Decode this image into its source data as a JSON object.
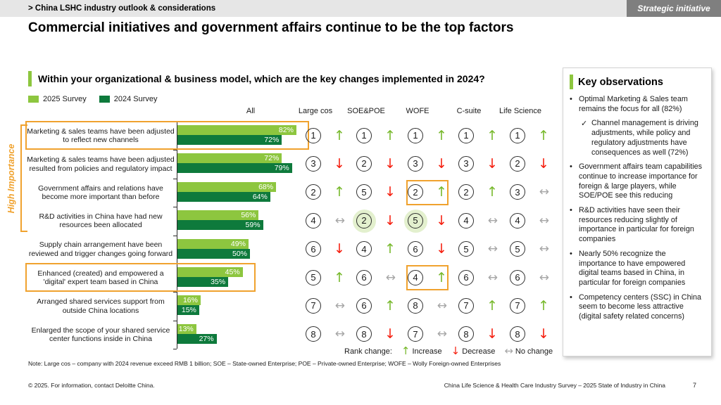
{
  "header": {
    "breadcrumb": "> China LSHC industry outlook & considerations",
    "badge": "Strategic initiative"
  },
  "title": "Commercial initiatives and government affairs continue to be the top factors",
  "question": "Within your organizational & business model, which are the key changes implemented in 2024?",
  "side_label": "High Importance",
  "columns": [
    "All",
    "Large cos",
    "SOE&POE",
    "WOFE",
    "C-suite",
    "Life Science"
  ],
  "colors": {
    "accent_green_light": "#8dc63f",
    "accent_green_dark": "#0e7a3c",
    "highlight_orange": "#f0a22e",
    "arrow_increase": "#76b82a",
    "arrow_decrease": "#f51f0f",
    "arrow_no_change": "#a6a6a6",
    "rank_highlight_fill": "#e3f0ce",
    "topbar_gray": "#e6e6e6",
    "badge_gray": "#7f7f7f"
  },
  "icons": {
    "up": "↑",
    "down": "↓",
    "none": "↔",
    "bullet": "•",
    "check": "✓"
  },
  "chart_data": {
    "type": "bar",
    "orientation": "horizontal",
    "title": "Within your organizational & business model, which are the key changes implemented in 2024?",
    "value_suffix": "%",
    "xlim": [
      0,
      100
    ],
    "grid": false,
    "legend_position": "top-left",
    "categories": [
      "Marketing & sales teams have been adjusted to reflect new channels",
      "Marketing & sales teams have been adjusted resulted from policies and regulatory impact",
      "Government affairs and relations have become more important than before",
      "R&D activities in China have had new resources been allocated",
      "Supply chain arrangement have been reviewed and trigger changes going forward",
      "Enhanced (created) and empowered a 'digital' expert team based in China",
      "Arranged shared services support from outside China locations",
      "Enlarged the scope of your shared service center functions inside in China"
    ],
    "series": [
      {
        "name": "2025 Survey",
        "color": "#8dc63f",
        "values": [
          82,
          72,
          68,
          56,
          49,
          45,
          16,
          13
        ]
      },
      {
        "name": "2024 Survey",
        "color": "#0e7a3c",
        "values": [
          72,
          79,
          64,
          59,
          50,
          35,
          15,
          27
        ]
      }
    ]
  },
  "rank_table": {
    "columns": [
      "Large cos",
      "SOE&POE",
      "WOFE",
      "C-suite",
      "Life Science"
    ],
    "rows": [
      {
        "label": "Marketing & sales teams have been adjusted to reflect new channels",
        "v2025": 82,
        "v2024": 72,
        "highlighted": true,
        "ranks": [
          {
            "n": 1,
            "dir": "up"
          },
          {
            "n": 1,
            "dir": "up"
          },
          {
            "n": 1,
            "dir": "up"
          },
          {
            "n": 1,
            "dir": "up"
          },
          {
            "n": 1,
            "dir": "up"
          }
        ]
      },
      {
        "label": "Marketing & sales teams have been adjusted resulted from policies and regulatory impact",
        "v2025": 72,
        "v2024": 79,
        "highlighted": false,
        "ranks": [
          {
            "n": 3,
            "dir": "down"
          },
          {
            "n": 2,
            "dir": "down"
          },
          {
            "n": 3,
            "dir": "down"
          },
          {
            "n": 3,
            "dir": "down"
          },
          {
            "n": 2,
            "dir": "down"
          }
        ]
      },
      {
        "label": "Government affairs and relations have become more important than before",
        "v2025": 68,
        "v2024": 64,
        "highlighted": false,
        "ranks": [
          {
            "n": 2,
            "dir": "up"
          },
          {
            "n": 5,
            "dir": "down"
          },
          {
            "n": 2,
            "dir": "up",
            "highlight": "box"
          },
          {
            "n": 2,
            "dir": "up"
          },
          {
            "n": 3,
            "dir": "none"
          }
        ]
      },
      {
        "label": "R&D activities in China have had new resources been allocated",
        "v2025": 56,
        "v2024": 59,
        "highlighted": false,
        "ranks": [
          {
            "n": 4,
            "dir": "none"
          },
          {
            "n": 2,
            "dir": "down",
            "highlight": "circle"
          },
          {
            "n": 5,
            "dir": "down",
            "highlight": "circle"
          },
          {
            "n": 4,
            "dir": "none"
          },
          {
            "n": 4,
            "dir": "none"
          }
        ]
      },
      {
        "label": "Supply chain arrangement have been reviewed and trigger changes going forward",
        "v2025": 49,
        "v2024": 50,
        "highlighted": false,
        "ranks": [
          {
            "n": 6,
            "dir": "down"
          },
          {
            "n": 4,
            "dir": "up"
          },
          {
            "n": 6,
            "dir": "down"
          },
          {
            "n": 5,
            "dir": "none"
          },
          {
            "n": 5,
            "dir": "none"
          }
        ]
      },
      {
        "label": "Enhanced (created) and empowered a 'digital' expert team based in China",
        "v2025": 45,
        "v2024": 35,
        "highlighted": true,
        "ranks": [
          {
            "n": 5,
            "dir": "up"
          },
          {
            "n": 6,
            "dir": "none"
          },
          {
            "n": 4,
            "dir": "up",
            "highlight": "box"
          },
          {
            "n": 6,
            "dir": "none"
          },
          {
            "n": 6,
            "dir": "none"
          }
        ]
      },
      {
        "label": "Arranged shared services support from outside China locations",
        "v2025": 16,
        "v2024": 15,
        "highlighted": false,
        "ranks": [
          {
            "n": 7,
            "dir": "none"
          },
          {
            "n": 6,
            "dir": "up"
          },
          {
            "n": 8,
            "dir": "none"
          },
          {
            "n": 7,
            "dir": "up"
          },
          {
            "n": 7,
            "dir": "up"
          }
        ]
      },
      {
        "label": "Enlarged the scope of your shared service center functions inside in China",
        "v2025": 13,
        "v2024": 27,
        "highlighted": false,
        "ranks": [
          {
            "n": 8,
            "dir": "none"
          },
          {
            "n": 8,
            "dir": "down"
          },
          {
            "n": 7,
            "dir": "none"
          },
          {
            "n": 8,
            "dir": "down"
          },
          {
            "n": 8,
            "dir": "down"
          }
        ]
      }
    ]
  },
  "rank_legend": {
    "prefix": "Rank change:",
    "increase": "Increase",
    "decrease": "Decrease",
    "no_change": "No change"
  },
  "observations": {
    "title": "Key observations",
    "bullets": [
      {
        "text": "Optimal Marketing & Sales team remains the focus for all (82%)",
        "subs": [
          "Channel management is driving adjustments, while policy and regulatory adjustments have consequences as well (72%)"
        ]
      },
      {
        "text": "Government affairs team capabilities continue to increase importance for foreign & large players, while SOE/POE see this reducing"
      },
      {
        "text": "R&D activities have seen their resources reducing slightly of importance in particular for foreign companies"
      },
      {
        "text": "Nearly 50% recognize the importance to have empowered digital teams based in China, in particular for foreign companies"
      },
      {
        "text": "Competency centers (SSC) in China seem to become less attractive (digital safety related concerns)"
      }
    ]
  },
  "note": "Note: Large cos – company with 2024 revenue exceed RMB 1 billion; SOE – State-owned Enterprise; POE – Private-owned Enterprise; WOFE – Wolly Foreign-owned Enterprises",
  "footer": {
    "left": "© 2025. For information, contact Deloitte China.",
    "right": "China Life Science & Health Care Industry Survey – 2025 State of Industry in China",
    "page": "7"
  }
}
